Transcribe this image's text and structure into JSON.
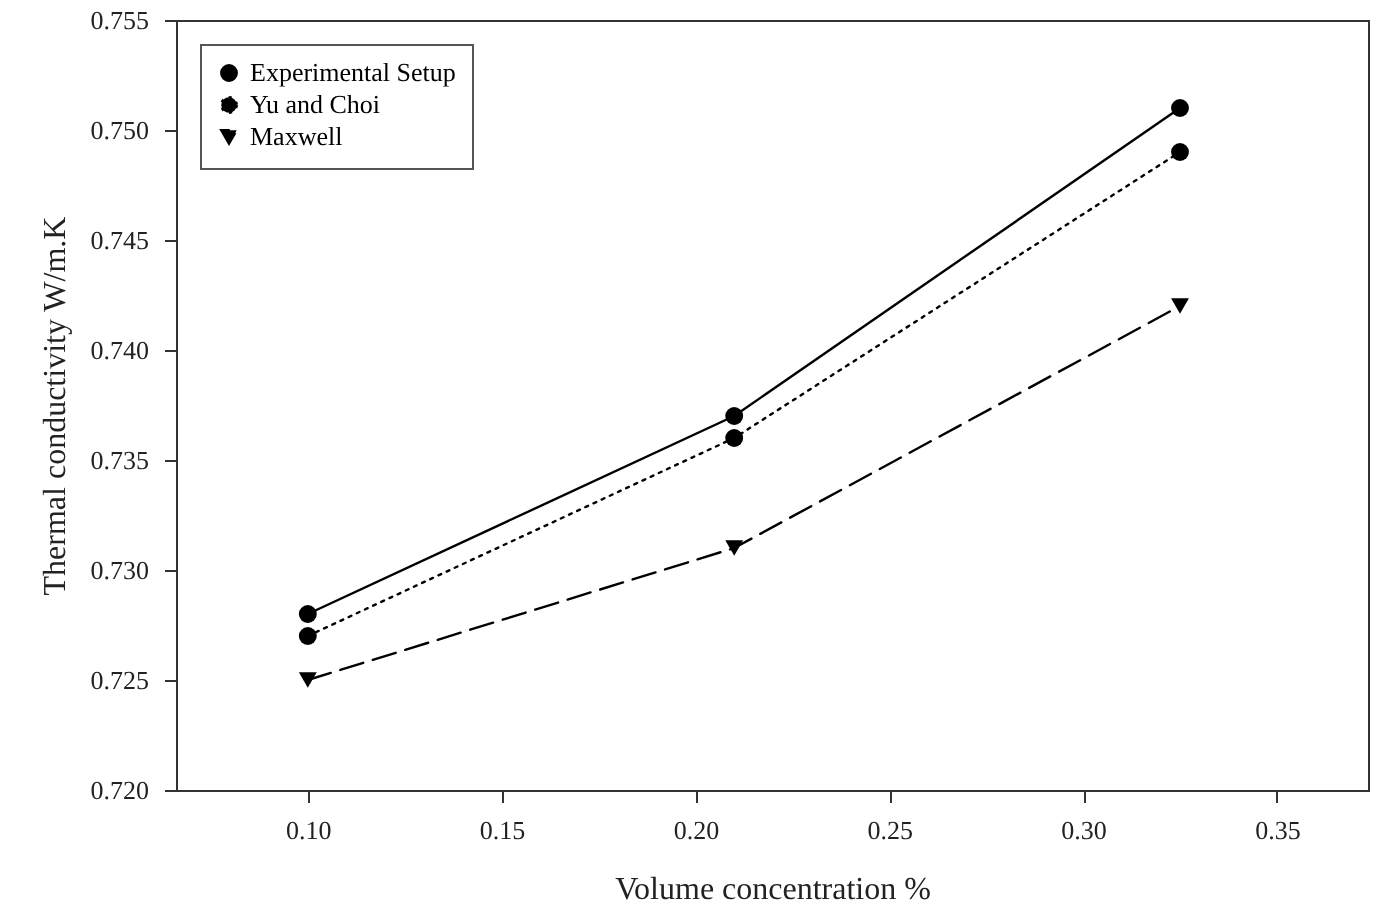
{
  "chart_data": {
    "type": "line",
    "xlabel": "Volume concentration %",
    "ylabel": "Thermal conductivity W/m.K",
    "x": [
      0.1,
      0.21,
      0.325
    ],
    "series": [
      {
        "name": "Experimental Setup",
        "color": "#000000",
        "values": [
          0.728,
          0.737,
          0.751
        ],
        "marker": "circle",
        "line_style": "solid"
      },
      {
        "name": "Yu and Choi",
        "color": "#000000",
        "values": [
          0.727,
          0.736,
          0.749
        ],
        "marker": "circle",
        "line_style": "dotted"
      },
      {
        "name": "Maxwell",
        "color": "#000000",
        "values": [
          0.725,
          0.731,
          0.742
        ],
        "marker": "triangle",
        "line_style": "dashed"
      }
    ],
    "xlim": [
      0.066,
      0.3735
    ],
    "xticks": [
      {
        "value": 0.1,
        "label": "0.10"
      },
      {
        "value": 0.15,
        "label": "0.15"
      },
      {
        "value": 0.2,
        "label": "0.20"
      },
      {
        "value": 0.25,
        "label": "0.25"
      },
      {
        "value": 0.3,
        "label": "0.30"
      },
      {
        "value": 0.35,
        "label": "0.35"
      }
    ],
    "ylim": [
      0.72,
      0.755
    ],
    "yticks": [
      {
        "value": 0.72,
        "label": "0.720"
      },
      {
        "value": 0.725,
        "label": "0.725"
      },
      {
        "value": 0.73,
        "label": "0.730"
      },
      {
        "value": 0.735,
        "label": "0.735"
      },
      {
        "value": 0.74,
        "label": "0.740"
      },
      {
        "value": 0.745,
        "label": "0.745"
      },
      {
        "value": 0.75,
        "label": "0.750"
      },
      {
        "value": 0.755,
        "label": "0.755"
      }
    ],
    "grid": false,
    "legend": "top left"
  }
}
